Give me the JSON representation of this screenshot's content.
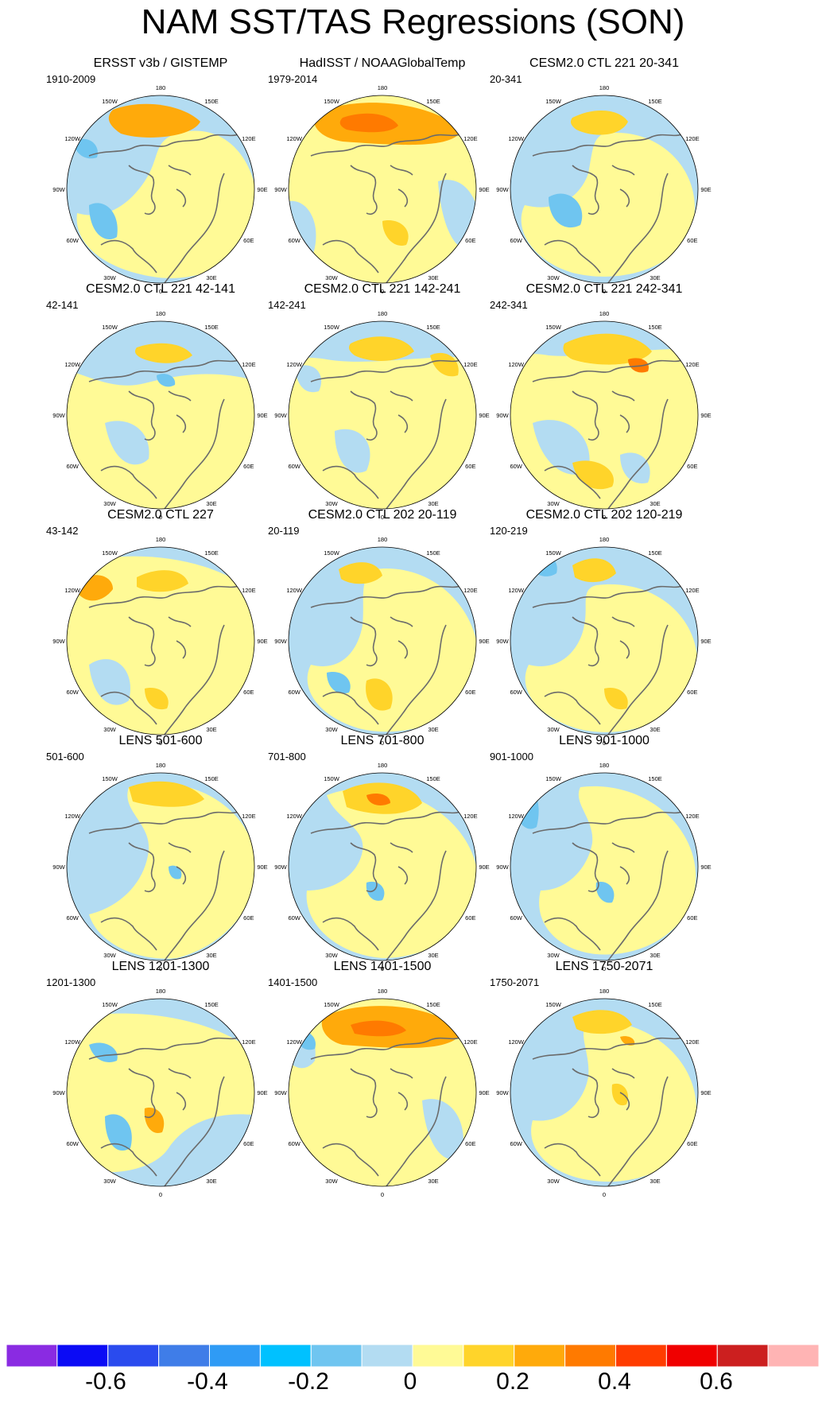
{
  "title": "NAM SST/TAS Regressions (SON)",
  "lon_labels": [
    "180",
    "150E",
    "120E",
    "90E",
    "60E",
    "30E",
    "0",
    "30W",
    "60W",
    "90W",
    "120W",
    "150W"
  ],
  "panels": [
    {
      "title": "ERSST v3b / GISTEMP",
      "period": "1910-2009"
    },
    {
      "title": "HadISST / NOAAGlobalTemp",
      "period": "1979-2014"
    },
    {
      "title": "CESM2.0 CTL 221 20-341",
      "period": "20-341"
    },
    {
      "title": "CESM2.0 CTL 221 42-141",
      "period": "42-141"
    },
    {
      "title": "CESM2.0 CTL 221 142-241",
      "period": "142-241"
    },
    {
      "title": "CESM2.0 CTL 221 242-341",
      "period": "242-341"
    },
    {
      "title": "CESM2.0 CTL 227",
      "period": "43-142"
    },
    {
      "title": "CESM2.0 CTL 202 20-119",
      "period": "20-119"
    },
    {
      "title": "CESM2.0 CTL 202 120-219",
      "period": "120-219"
    },
    {
      "title": "LENS 501-600",
      "period": "501-600"
    },
    {
      "title": "LENS 701-800",
      "period": "701-800"
    },
    {
      "title": "LENS 901-1000",
      "period": "901-1000"
    },
    {
      "title": "LENS 1201-1300",
      "period": "1201-1300"
    },
    {
      "title": "LENS 1401-1500",
      "period": "1401-1500"
    },
    {
      "title": "LENS 1750-2071",
      "period": "1750-2071"
    }
  ],
  "colorbar": {
    "colors": [
      "#8a2be2",
      "#0b0bf5",
      "#2a4bee",
      "#3f7de8",
      "#2f9bf5",
      "#00c1ff",
      "#6fc5f0",
      "#b3dcf2",
      "#fffa96",
      "#ffd42a",
      "#ffaa0b",
      "#ff7a00",
      "#ff3c00",
      "#f00000",
      "#cc1f1f",
      "#ffb4b4"
    ],
    "labels": [
      "-0.6",
      "-0.4",
      "-0.2",
      "0",
      "0.2",
      "0.4",
      "0.6"
    ]
  },
  "colors": {
    "land_outline": "#6b6b6b",
    "circle_border": "#000000",
    "blue_base": "#b3dcf2",
    "yellow_base": "#fffa96"
  }
}
